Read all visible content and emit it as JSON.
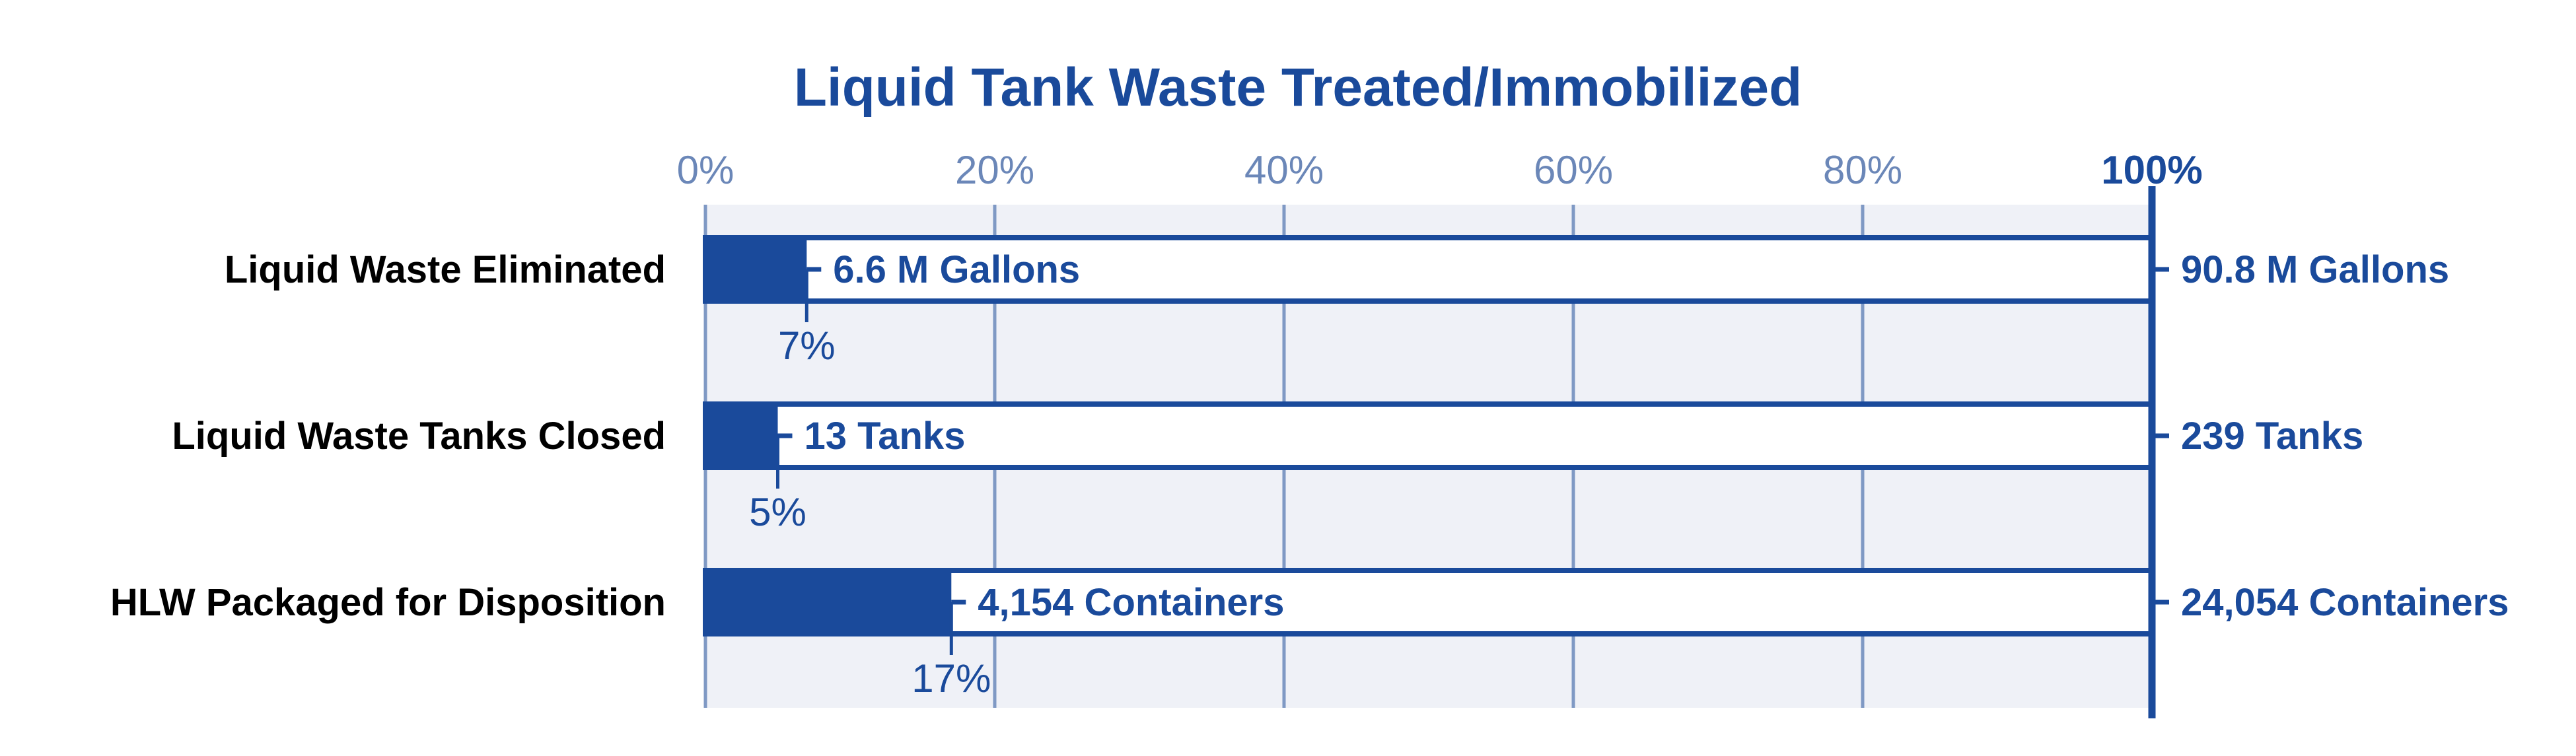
{
  "chart_data": {
    "type": "bar",
    "title": "Liquid Tank Waste Treated/Immobilized",
    "x_ticks": [
      "0%",
      "20%",
      "40%",
      "60%",
      "80%",
      "100%"
    ],
    "xlim": [
      0,
      100
    ],
    "grid": true,
    "categories": [
      "Liquid Waste Eliminated",
      "Liquid Waste Tanks Closed",
      "HLW Packaged for Disposition"
    ],
    "values": [
      7,
      5,
      17
    ],
    "percent_labels": [
      "7%",
      "5%",
      "17%"
    ],
    "completed_labels": [
      "6.6 M Gallons",
      "13 Tanks",
      "4,154 Containers"
    ],
    "total_labels": [
      "90.8 M Gallons",
      "239 Tanks",
      "24,054 Containers"
    ],
    "colors": {
      "fill": "#1a4a9b",
      "outline": "#1a4a9b",
      "plot_background": "#eff1f7",
      "grid": "#7f99c4",
      "tick_text": "#6b87b8"
    }
  }
}
